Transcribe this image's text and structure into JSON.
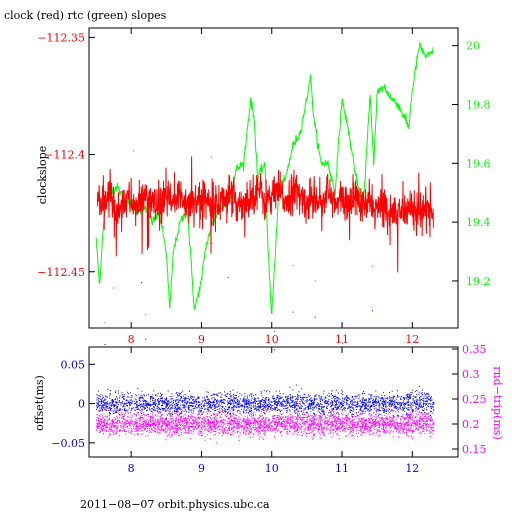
{
  "chart_data": [
    {
      "type": "line",
      "title": "clock (red) rtc (green) slopes",
      "ylabel_left": "clockslope",
      "x_ticks": [
        8,
        9,
        10,
        11,
        12
      ],
      "xlim": [
        7.4,
        12.65
      ],
      "ylim_left": [
        -112.474,
        -112.346
      ],
      "ylim_right": [
        19.04,
        20.06
      ],
      "y_ticks_left": [
        {
          "value": -112.35,
          "label": "−112.35"
        },
        {
          "value": -112.4,
          "label": "−112.4"
        },
        {
          "value": -112.45,
          "label": "−112.45"
        }
      ],
      "y_ticks_right": [
        {
          "value": 20.0,
          "label": "20"
        },
        {
          "value": 19.8,
          "label": "19.8"
        },
        {
          "value": 19.6,
          "label": "19.6"
        },
        {
          "value": 19.4,
          "label": "19.4"
        },
        {
          "value": 19.2,
          "label": "19.2"
        }
      ],
      "series": [
        {
          "name": "clock",
          "axis": "left",
          "color": "#ff0000",
          "x": [
            7.52,
            7.6,
            7.7,
            7.8,
            7.9,
            8.0,
            8.1,
            8.2,
            8.3,
            8.4,
            8.5,
            8.55,
            8.6,
            8.7,
            8.8,
            8.9,
            9.0,
            9.1,
            9.2,
            9.3,
            9.4,
            9.5,
            9.6,
            9.7,
            9.8,
            9.9,
            10.0,
            10.1,
            10.2,
            10.3,
            10.4,
            10.5,
            10.6,
            10.7,
            10.8,
            10.9,
            11.0,
            11.1,
            11.2,
            11.3,
            11.4,
            11.5,
            11.6,
            11.7,
            11.8,
            11.9,
            12.0,
            12.1,
            12.2,
            12.3
          ],
          "y": [
            -112.418,
            -112.422,
            -112.416,
            -112.425,
            -112.419,
            -112.42,
            -112.423,
            -112.417,
            -112.421,
            -112.424,
            -112.418,
            -112.42,
            -112.422,
            -112.417,
            -112.421,
            -112.419,
            -112.42,
            -112.418,
            -112.422,
            -112.419,
            -112.417,
            -112.421,
            -112.42,
            -112.418,
            -112.414,
            -112.42,
            -112.418,
            -112.416,
            -112.42,
            -112.415,
            -112.418,
            -112.421,
            -112.417,
            -112.42,
            -112.416,
            -112.422,
            -112.419,
            -112.421,
            -112.418,
            -112.423,
            -112.42,
            -112.424,
            -112.421,
            -112.426,
            -112.422,
            -112.425,
            -112.421,
            -112.426,
            -112.423,
            -112.425
          ]
        },
        {
          "name": "rtc",
          "axis": "right",
          "color": "#00ff00",
          "x": [
            7.5,
            7.55,
            7.6,
            7.65,
            7.7,
            7.8,
            7.9,
            8.0,
            8.1,
            8.2,
            8.3,
            8.4,
            8.5,
            8.55,
            8.6,
            8.7,
            8.8,
            8.9,
            9.0,
            9.05,
            9.1,
            9.2,
            9.3,
            9.4,
            9.5,
            9.6,
            9.7,
            9.75,
            9.8,
            9.9,
            9.95,
            10.0,
            10.1,
            10.2,
            10.3,
            10.4,
            10.5,
            10.55,
            10.6,
            10.7,
            10.8,
            10.9,
            11.0,
            11.1,
            11.2,
            11.3,
            11.4,
            11.45,
            11.5,
            11.6,
            11.7,
            11.8,
            11.9,
            11.95,
            12.0,
            12.1,
            12.2,
            12.3
          ],
          "y": [
            19.35,
            19.18,
            19.38,
            19.47,
            19.5,
            19.52,
            19.48,
            19.46,
            19.44,
            19.45,
            19.4,
            19.43,
            19.3,
            19.1,
            19.3,
            19.4,
            19.44,
            19.1,
            19.2,
            19.3,
            19.35,
            19.42,
            19.45,
            19.48,
            19.58,
            19.6,
            19.82,
            19.75,
            19.55,
            19.6,
            19.3,
            19.08,
            19.5,
            19.55,
            19.66,
            19.7,
            19.82,
            19.9,
            19.75,
            19.6,
            19.6,
            19.5,
            19.82,
            19.7,
            19.55,
            19.45,
            19.83,
            19.6,
            19.84,
            19.86,
            19.82,
            19.8,
            19.75,
            19.72,
            19.85,
            20.0,
            19.96,
            19.98
          ]
        }
      ]
    },
    {
      "type": "scatter",
      "ylabel_left": "offset(ms)",
      "ylabel_right": "rnd−trip(ms)",
      "x_ticks": [
        8,
        9,
        10,
        11,
        12
      ],
      "xlim": [
        7.4,
        12.65
      ],
      "ylim_left": [
        -0.068,
        0.072
      ],
      "ylim_right": [
        0.134,
        0.354
      ],
      "y_ticks_left": [
        {
          "value": 0.05,
          "label": "0.05"
        },
        {
          "value": 0,
          "label": "0"
        },
        {
          "value": -0.05,
          "label": "−0.05"
        }
      ],
      "y_ticks_right": [
        {
          "value": 0.35,
          "label": "0.35"
        },
        {
          "value": 0.3,
          "label": "0.3"
        },
        {
          "value": 0.25,
          "label": "0.25"
        },
        {
          "value": 0.2,
          "label": "0.2"
        },
        {
          "value": 0.15,
          "label": "0.15"
        }
      ],
      "series": [
        {
          "name": "offset",
          "axis": "left",
          "color": "#0000ff",
          "x_range": [
            7.5,
            12.3
          ],
          "center": 0.0,
          "spread": 0.012
        },
        {
          "name": "rnd-trip",
          "axis": "right",
          "color": "#ff00ff",
          "x_range": [
            7.5,
            12.3
          ],
          "center": 0.2,
          "spread": 0.02
        }
      ]
    }
  ],
  "footer": "2011−08−07 orbit.physics.ubc.ca",
  "colors": {
    "clock": "#ff0000",
    "rtc": "#00ff00",
    "offset": "#0000ff",
    "rndtrip": "#ff00ff"
  }
}
